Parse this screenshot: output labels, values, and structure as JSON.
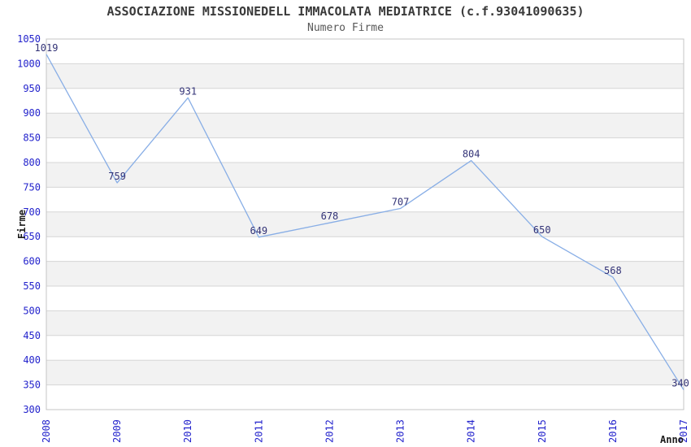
{
  "header": {
    "title": "ASSOCIAZIONE MISSIONEDELL IMMACOLATA MEDIATRICE (c.f.93041090635)",
    "subtitle": "Numero Firme"
  },
  "chart_data": {
    "type": "line",
    "title": "ASSOCIAZIONE MISSIONEDELL IMMACOLATA MEDIATRICE (c.f.93041090635)",
    "subtitle": "Numero Firme",
    "xlabel": "Anno",
    "ylabel": "Firme",
    "categories": [
      "2008",
      "2009",
      "2010",
      "2011",
      "2012",
      "2013",
      "2014",
      "2015",
      "2016",
      "2017"
    ],
    "values": [
      1019,
      759,
      931,
      649,
      678,
      707,
      804,
      650,
      568,
      340
    ],
    "series_name": "Numero Firme",
    "ylim": [
      300,
      1050
    ],
    "ytick_step": 50,
    "grid": "horizontal-only",
    "plot_bands": "alternating 50-unit stripes, white and light gray",
    "legend": "none",
    "data_labels": true,
    "x_tick_rotation": -90,
    "colors": {
      "line": "#88aee6",
      "tick_label": "#2323cc",
      "data_label": "#333377",
      "band": "#f2f2f2",
      "grid": "#d6d6d6",
      "border": "#c4c4c4",
      "title": "#3a3a3a",
      "subtitle": "#585858",
      "axis_title": "#1c1c1c"
    }
  }
}
